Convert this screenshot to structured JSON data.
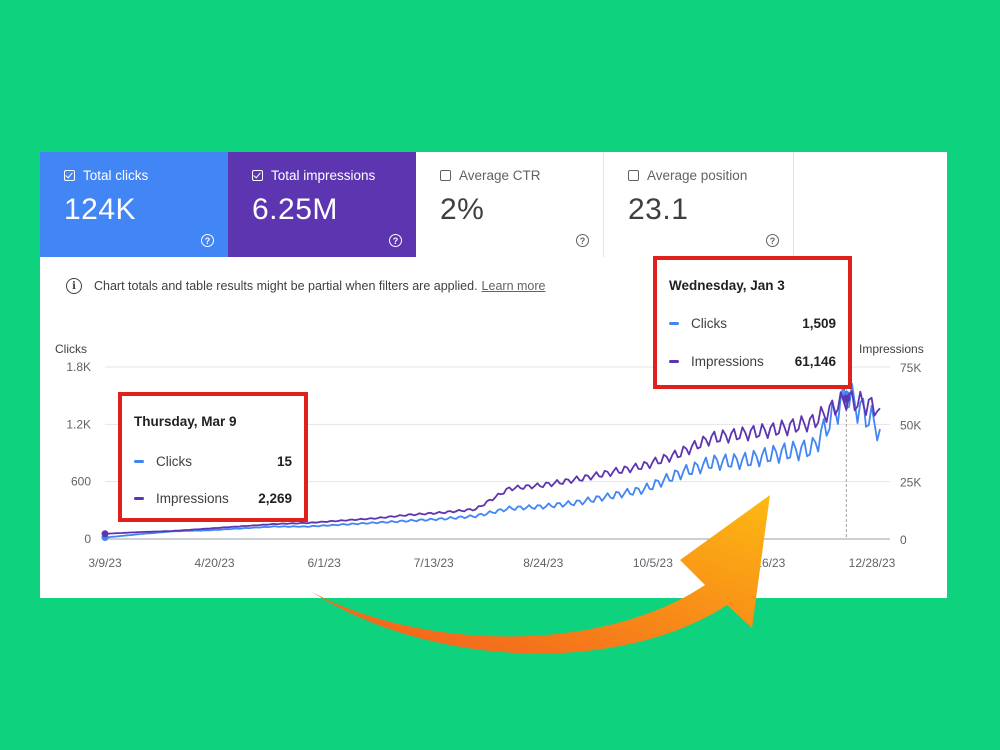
{
  "cards": [
    {
      "label": "Total clicks",
      "value": "124K",
      "checked": true
    },
    {
      "label": "Total impressions",
      "value": "6.25M",
      "checked": true
    },
    {
      "label": "Average CTR",
      "value": "2%",
      "checked": false
    },
    {
      "label": "Average position",
      "value": "23.1",
      "checked": false
    }
  ],
  "help_glyph": "?",
  "notice": {
    "text": "Chart totals and table results might be partial when filters are applied.",
    "link": "Learn more"
  },
  "tooltips": [
    {
      "date": "Thursday, Mar 9",
      "clicks_label": "Clicks",
      "clicks_value": "15",
      "impressions_label": "Impressions",
      "impressions_value": "2,269"
    },
    {
      "date": "Wednesday, Jan 3",
      "clicks_label": "Clicks",
      "clicks_value": "1,509",
      "impressions_label": "Impressions",
      "impressions_value": "61,146"
    }
  ],
  "colors": {
    "clicks": "#4285f4",
    "impressions": "#5e35b1",
    "highlight": "#e0201b",
    "background": "#0fd27f",
    "arrow_start": "#f25a1e",
    "arrow_end": "#fdb913"
  },
  "chart_data": {
    "type": "line",
    "x": [
      "3/9/23",
      "3/23/23",
      "4/6/23",
      "4/20/23",
      "5/4/23",
      "5/18/23",
      "6/1/23",
      "6/15/23",
      "6/29/23",
      "7/13/23",
      "7/27/23",
      "8/10/23",
      "8/24/23",
      "9/7/23",
      "9/21/23",
      "10/5/23",
      "10/19/23",
      "11/2/23",
      "11/16/23",
      "11/30/23",
      "12/14/23",
      "12/28/23",
      "1/3/24",
      "1/10/24"
    ],
    "x_tick_labels": [
      "3/9/23",
      "4/20/23",
      "6/1/23",
      "7/13/23",
      "8/24/23",
      "10/5/23",
      "11/16/23",
      "12/28/23"
    ],
    "series": [
      {
        "name": "Clicks",
        "axis": "left",
        "values": [
          15,
          50,
          80,
          90,
          110,
          130,
          130,
          150,
          170,
          190,
          210,
          240,
          320,
          340,
          380,
          450,
          520,
          680,
          800,
          820,
          900,
          950,
          1509,
          1150
        ]
      },
      {
        "name": "Impressions",
        "axis": "right",
        "values": [
          2269,
          3000,
          3500,
          4500,
          5500,
          6500,
          7000,
          8000,
          9000,
          10500,
          11500,
          13000,
          22000,
          23500,
          26000,
          29000,
          32000,
          37000,
          44000,
          46000,
          48000,
          51000,
          61146,
          57000
        ]
      }
    ],
    "ylabel_left": "Clicks",
    "ylabel_right": "Impressions",
    "y_left_ticks": [
      "0",
      "600",
      "1.2K",
      "1.8K"
    ],
    "y_right_ticks": [
      "0",
      "25K",
      "50K",
      "75K"
    ],
    "ylim_left": [
      0,
      1800
    ],
    "ylim_right": [
      0,
      75000
    ],
    "grid": true,
    "legend": "none"
  }
}
